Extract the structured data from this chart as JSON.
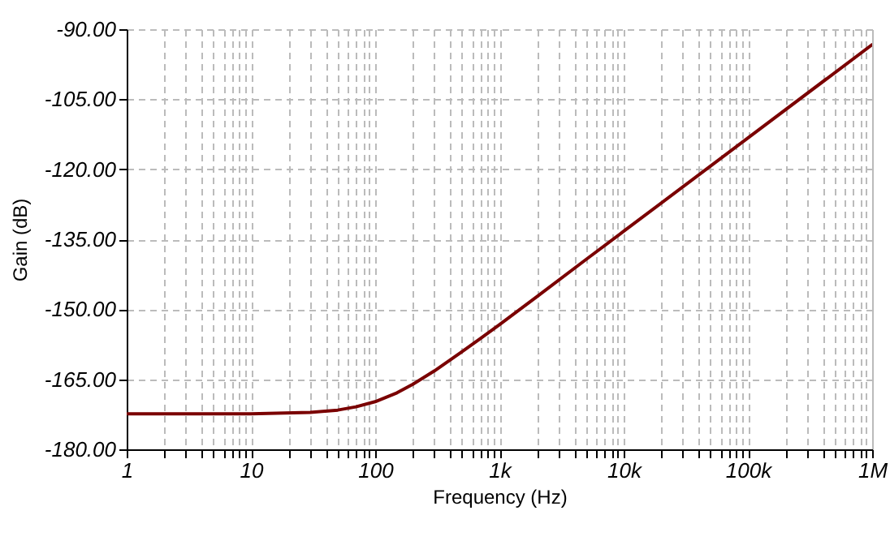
{
  "chart_data": {
    "type": "line",
    "xlabel": "Frequency (Hz)",
    "ylabel": "Gain (dB)",
    "x": [
      1,
      10,
      30,
      50,
      70,
      100,
      150,
      200,
      300,
      500,
      700,
      1000,
      2000,
      5000,
      10000,
      100000,
      1000000
    ],
    "series": [
      {
        "color": "#7a0000",
        "values": [
          -172.4,
          -172.4,
          -172.1,
          -171.6,
          -170.9,
          -169.8,
          -167.9,
          -166.1,
          -163.2,
          -159.1,
          -156.3,
          -153.3,
          -147.3,
          -139.3,
          -133.3,
          -113.3,
          -93.3
        ]
      }
    ],
    "log": "x",
    "xlim": [
      1,
      1000000
    ],
    "xticks": [
      1,
      {
        "value": 2,
        "label": null
      },
      {
        "value": 3,
        "label": null
      },
      {
        "value": 4,
        "label": null
      },
      {
        "value": 5,
        "label": null
      },
      {
        "value": 6,
        "label": null
      },
      {
        "value": 7,
        "label": null
      },
      {
        "value": 8,
        "label": null
      },
      {
        "value": 9,
        "label": null
      },
      10,
      {
        "value": 20,
        "label": null
      },
      {
        "value": 30,
        "label": null
      },
      {
        "value": 40,
        "label": null
      },
      {
        "value": 50,
        "label": null
      },
      {
        "value": 60,
        "label": null
      },
      {
        "value": 70,
        "label": null
      },
      {
        "value": 80,
        "label": null
      },
      {
        "value": 90,
        "label": null
      },
      100,
      {
        "value": 200,
        "label": null
      },
      {
        "value": 300,
        "label": null
      },
      {
        "value": 400,
        "label": null
      },
      {
        "value": 500,
        "label": null
      },
      {
        "value": 600,
        "label": null
      },
      {
        "value": 700,
        "label": null
      },
      {
        "value": 800,
        "label": null
      },
      {
        "value": 900,
        "label": null
      },
      {
        "value": 1000,
        "label": "1k"
      },
      {
        "value": 2000,
        "label": null
      },
      {
        "value": 3000,
        "label": null
      },
      {
        "value": 4000,
        "label": null
      },
      {
        "value": 5000,
        "label": null
      },
      {
        "value": 6000,
        "label": null
      },
      {
        "value": 7000,
        "label": null
      },
      {
        "value": 8000,
        "label": null
      },
      {
        "value": 9000,
        "label": null
      },
      {
        "value": 10000,
        "label": "10k"
      },
      {
        "value": 20000,
        "label": null
      },
      {
        "value": 30000,
        "label": null
      },
      {
        "value": 40000,
        "label": null
      },
      {
        "value": 50000,
        "label": null
      },
      {
        "value": 60000,
        "label": null
      },
      {
        "value": 70000,
        "label": null
      },
      {
        "value": 80000,
        "label": null
      },
      {
        "value": 90000,
        "label": null
      },
      {
        "value": 100000,
        "label": "100k"
      },
      {
        "value": 200000,
        "label": null
      },
      {
        "value": 300000,
        "label": null
      },
      {
        "value": 400000,
        "label": null
      },
      {
        "value": 500000,
        "label": null
      },
      {
        "value": 600000,
        "label": null
      },
      {
        "value": 700000,
        "label": null
      },
      {
        "value": 800000,
        "label": null
      },
      {
        "value": 900000,
        "label": null
      },
      {
        "value": 1000000,
        "label": "1M"
      }
    ],
    "ylim": [
      -180,
      -90
    ],
    "yticks": [
      {
        "value": -180,
        "label": "-180.00"
      },
      {
        "value": -165,
        "label": "-165.00"
      },
      {
        "value": -150,
        "label": "-150.00"
      },
      {
        "value": -135,
        "label": "-135.00"
      },
      {
        "value": -120,
        "label": "-120.00"
      },
      {
        "value": -105,
        "label": "-105.00"
      },
      {
        "value": -90,
        "label": "-90.00"
      }
    ],
    "grid": true,
    "line_style": "solid"
  }
}
